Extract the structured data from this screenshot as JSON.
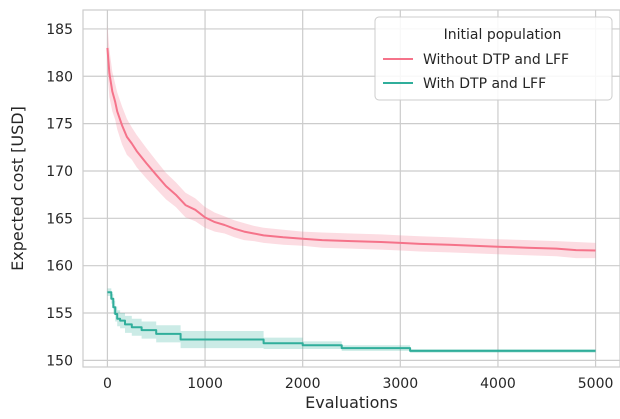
{
  "chart_data": {
    "type": "line",
    "title": "",
    "xlabel": "Evaluations",
    "ylabel": "Expected cost [USD]",
    "xlim": [
      -250,
      5250
    ],
    "ylim": [
      149.3,
      187.0
    ],
    "xticks": [
      0,
      1000,
      2000,
      3000,
      4000,
      5000
    ],
    "xtick_labels": [
      "0",
      "1000",
      "2000",
      "3000",
      "4000",
      "5000"
    ],
    "yticks": [
      150,
      155,
      160,
      165,
      170,
      175,
      180,
      185
    ],
    "ytick_labels": [
      "150",
      "155",
      "160",
      "165",
      "170",
      "175",
      "180",
      "185"
    ],
    "grid": true,
    "legend": {
      "title": "Initial population",
      "placement": "top-right"
    },
    "series": [
      {
        "name": "Without DTP and LFF",
        "color": "#f5738a",
        "step": false,
        "x": [
          0,
          20,
          50,
          80,
          100,
          150,
          200,
          250,
          300,
          400,
          500,
          600,
          700,
          800,
          900,
          1000,
          1100,
          1200,
          1300,
          1400,
          1500,
          1600,
          1800,
          2000,
          2200,
          2500,
          2800,
          3000,
          3200,
          3500,
          4000,
          4300,
          4600,
          4800,
          5000
        ],
        "y": [
          183.0,
          180.3,
          178.4,
          177.3,
          176.3,
          174.8,
          173.6,
          172.9,
          172.1,
          170.8,
          169.6,
          168.4,
          167.5,
          166.4,
          165.9,
          165.1,
          164.6,
          164.3,
          163.9,
          163.6,
          163.4,
          163.2,
          163.0,
          162.85,
          162.7,
          162.6,
          162.5,
          162.4,
          162.3,
          162.2,
          162.0,
          161.9,
          161.8,
          161.65,
          161.6
        ],
        "band_upper": [
          185.5,
          182.8,
          180.5,
          179.2,
          178.3,
          176.8,
          175.5,
          174.6,
          173.8,
          172.4,
          171.1,
          169.8,
          168.8,
          167.7,
          167.1,
          166.2,
          165.6,
          165.2,
          164.8,
          164.5,
          164.2,
          164.0,
          163.8,
          163.6,
          163.5,
          163.4,
          163.3,
          163.2,
          163.1,
          163.0,
          162.8,
          162.7,
          162.6,
          162.5,
          162.4
        ],
        "band_lower": [
          180.5,
          177.8,
          176.3,
          175.4,
          174.4,
          172.8,
          171.7,
          171.2,
          170.4,
          169.2,
          168.1,
          167.0,
          166.2,
          165.1,
          164.7,
          164.0,
          163.6,
          163.4,
          163.0,
          162.7,
          162.6,
          162.4,
          162.2,
          162.1,
          161.9,
          161.8,
          161.7,
          161.6,
          161.5,
          161.4,
          161.2,
          161.1,
          161.0,
          160.8,
          160.8
        ]
      },
      {
        "name": "With DTP and LFF",
        "color": "#30ae9b",
        "step": true,
        "x": [
          0,
          40,
          60,
          80,
          100,
          130,
          180,
          250,
          350,
          500,
          750,
          1600,
          2000,
          2400,
          3100,
          5000
        ],
        "y": [
          157.2,
          156.5,
          155.6,
          154.9,
          154.4,
          154.2,
          153.8,
          153.5,
          153.2,
          152.8,
          152.2,
          151.8,
          151.6,
          151.3,
          151.0,
          151.0
        ],
        "band_upper": [
          157.6,
          157.0,
          156.3,
          155.7,
          155.3,
          155.0,
          154.7,
          154.4,
          154.1,
          153.7,
          153.1,
          152.4,
          152.0,
          151.6,
          151.2,
          151.2
        ],
        "band_lower": [
          156.8,
          156.0,
          154.9,
          154.1,
          153.6,
          153.4,
          152.9,
          152.6,
          152.3,
          151.9,
          151.3,
          151.2,
          151.2,
          151.0,
          150.8,
          150.8
        ]
      }
    ]
  }
}
